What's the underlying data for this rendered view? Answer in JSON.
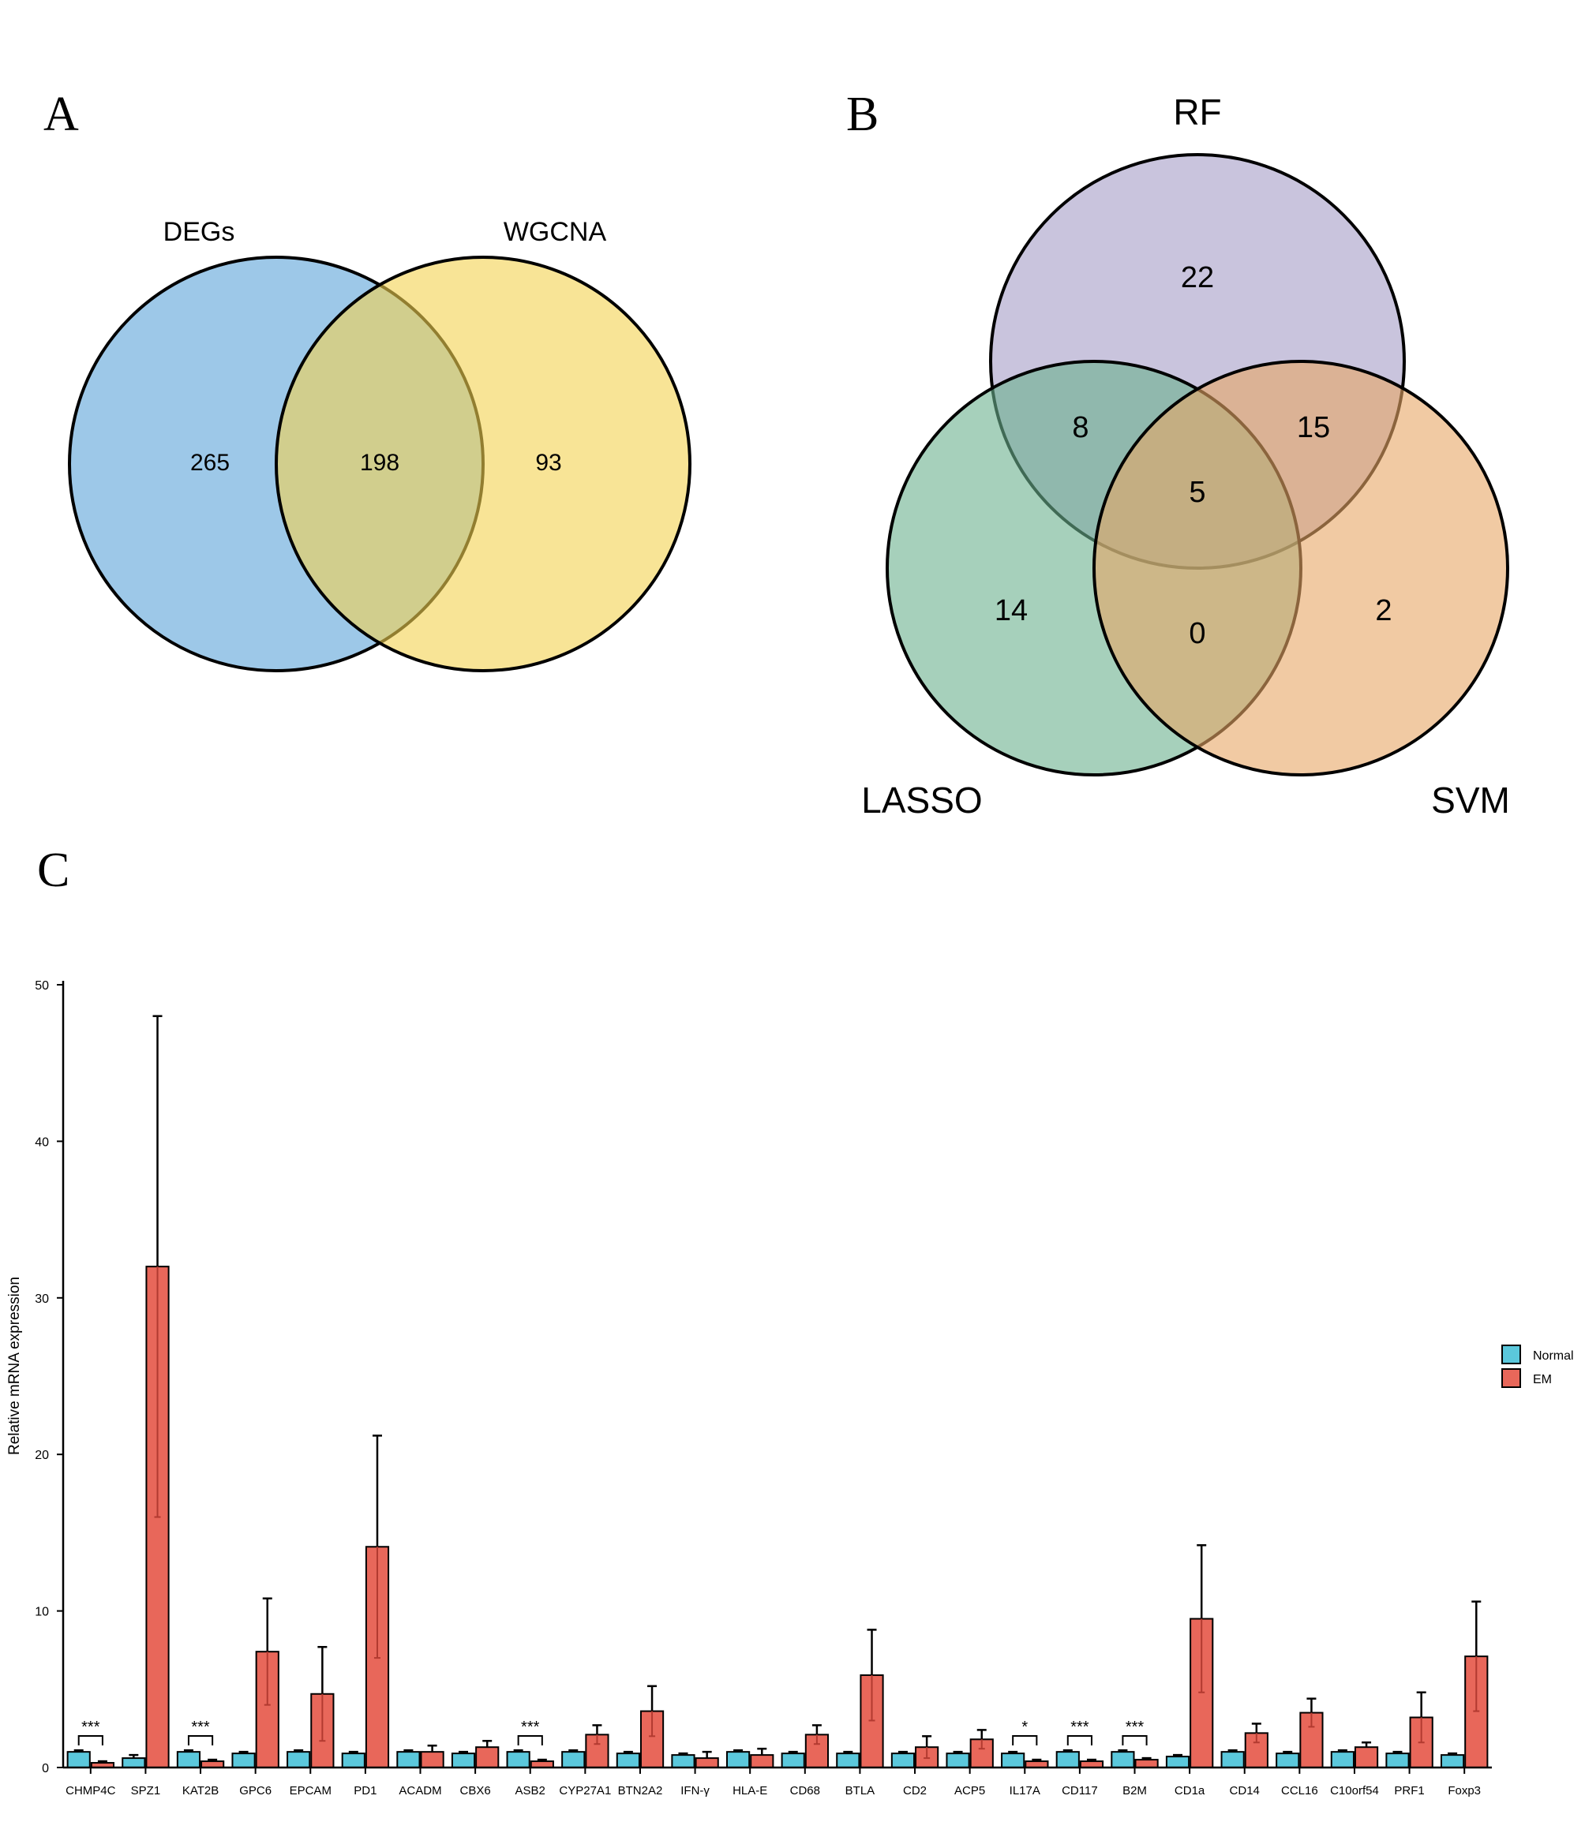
{
  "panels": {
    "a": "A",
    "b": "B",
    "c": "C"
  },
  "venn2": {
    "sets": [
      {
        "label": "DEGs",
        "color": "#5BA3D9"
      },
      {
        "label": "WGCNA",
        "color": "#F3D250"
      }
    ],
    "counts": {
      "only_a": "265",
      "both": "198",
      "only_b": "93"
    }
  },
  "venn3": {
    "sets": [
      {
        "label": "RF",
        "color": "#A59CC6"
      },
      {
        "label": "LASSO",
        "color": "#6BB08D"
      },
      {
        "label": "SVM",
        "color": "#E8A766"
      }
    ],
    "counts": {
      "rf_only": "22",
      "rf_lasso": "8",
      "rf_svm": "15",
      "all": "5",
      "lasso_only": "14",
      "lasso_svm": "0",
      "svm_only": "2"
    }
  },
  "chart_data": {
    "type": "bar",
    "ylabel": "Relative mRNA expression",
    "ylim": [
      0,
      50
    ],
    "yticks": [
      "0",
      "10",
      "20",
      "30",
      "40",
      "50"
    ],
    "legend_position": "right",
    "colors": {
      "Normal": "#5BC8DC",
      "EM": "#E8675A"
    },
    "categories": [
      "CHMP4C",
      "SPZ1",
      "KAT2B",
      "GPC6",
      "EPCAM",
      "PD1",
      "ACADM",
      "CBX6",
      "ASB2",
      "CYP27A1",
      "BTN2A2",
      "IFN-γ",
      "HLA-E",
      "CD68",
      "BTLA",
      "CD2",
      "ACP5",
      "IL17A",
      "CD117",
      "B2M",
      "CD1a",
      "CD14",
      "CCL16",
      "C10orf54",
      "PRF1",
      "Foxp3"
    ],
    "series": [
      {
        "name": "Normal",
        "values": [
          1.0,
          0.6,
          1.0,
          0.9,
          1.0,
          0.9,
          1.0,
          0.9,
          1.0,
          1.0,
          0.9,
          0.8,
          1.0,
          0.9,
          0.9,
          0.9,
          0.9,
          0.9,
          1.0,
          1.0,
          0.7,
          1.0,
          0.9,
          1.0,
          0.9,
          0.8
        ],
        "errors": [
          0.1,
          0.2,
          0.1,
          0.1,
          0.1,
          0.1,
          0.1,
          0.1,
          0.1,
          0.1,
          0.1,
          0.1,
          0.1,
          0.1,
          0.1,
          0.1,
          0.1,
          0.1,
          0.1,
          0.1,
          0.1,
          0.1,
          0.1,
          0.1,
          0.1,
          0.1
        ]
      },
      {
        "name": "EM",
        "values": [
          0.3,
          32.0,
          0.4,
          7.4,
          4.7,
          14.1,
          1.0,
          1.3,
          0.4,
          2.1,
          3.6,
          0.6,
          0.8,
          2.1,
          5.9,
          1.3,
          1.8,
          0.4,
          0.4,
          0.5,
          9.5,
          2.2,
          3.5,
          1.3,
          3.2,
          7.1
        ],
        "errors": [
          0.1,
          16.0,
          0.1,
          3.4,
          3.0,
          7.1,
          0.4,
          0.4,
          0.1,
          0.6,
          1.6,
          0.4,
          0.4,
          0.6,
          2.9,
          0.7,
          0.6,
          0.1,
          0.1,
          0.1,
          4.7,
          0.6,
          0.9,
          0.3,
          1.6,
          3.5
        ]
      }
    ],
    "significance": [
      {
        "category": "CHMP4C",
        "label": "***"
      },
      {
        "category": "KAT2B",
        "label": "***"
      },
      {
        "category": "ASB2",
        "label": "***"
      },
      {
        "category": "IL17A",
        "label": "*"
      },
      {
        "category": "CD117",
        "label": "***"
      },
      {
        "category": "B2M",
        "label": "***"
      }
    ]
  }
}
